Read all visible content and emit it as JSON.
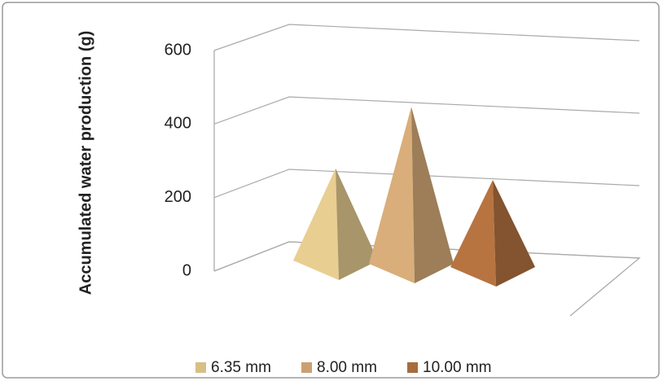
{
  "chart_data": {
    "type": "pyramid3d",
    "y_label": "Accumulated water production (g)",
    "ylim": [
      0,
      600
    ],
    "yticks": [
      0,
      200,
      400,
      600
    ],
    "grid": true,
    "legend": "bottom",
    "series": [
      {
        "name": "6.35 mm",
        "color": "#d8bf86",
        "values": [
          260
        ]
      },
      {
        "name": "8.00 mm",
        "color": "#c9a171",
        "values": [
          420
        ]
      },
      {
        "name": "10.00 mm",
        "color": "#a96b3c",
        "values": [
          230
        ]
      }
    ]
  }
}
